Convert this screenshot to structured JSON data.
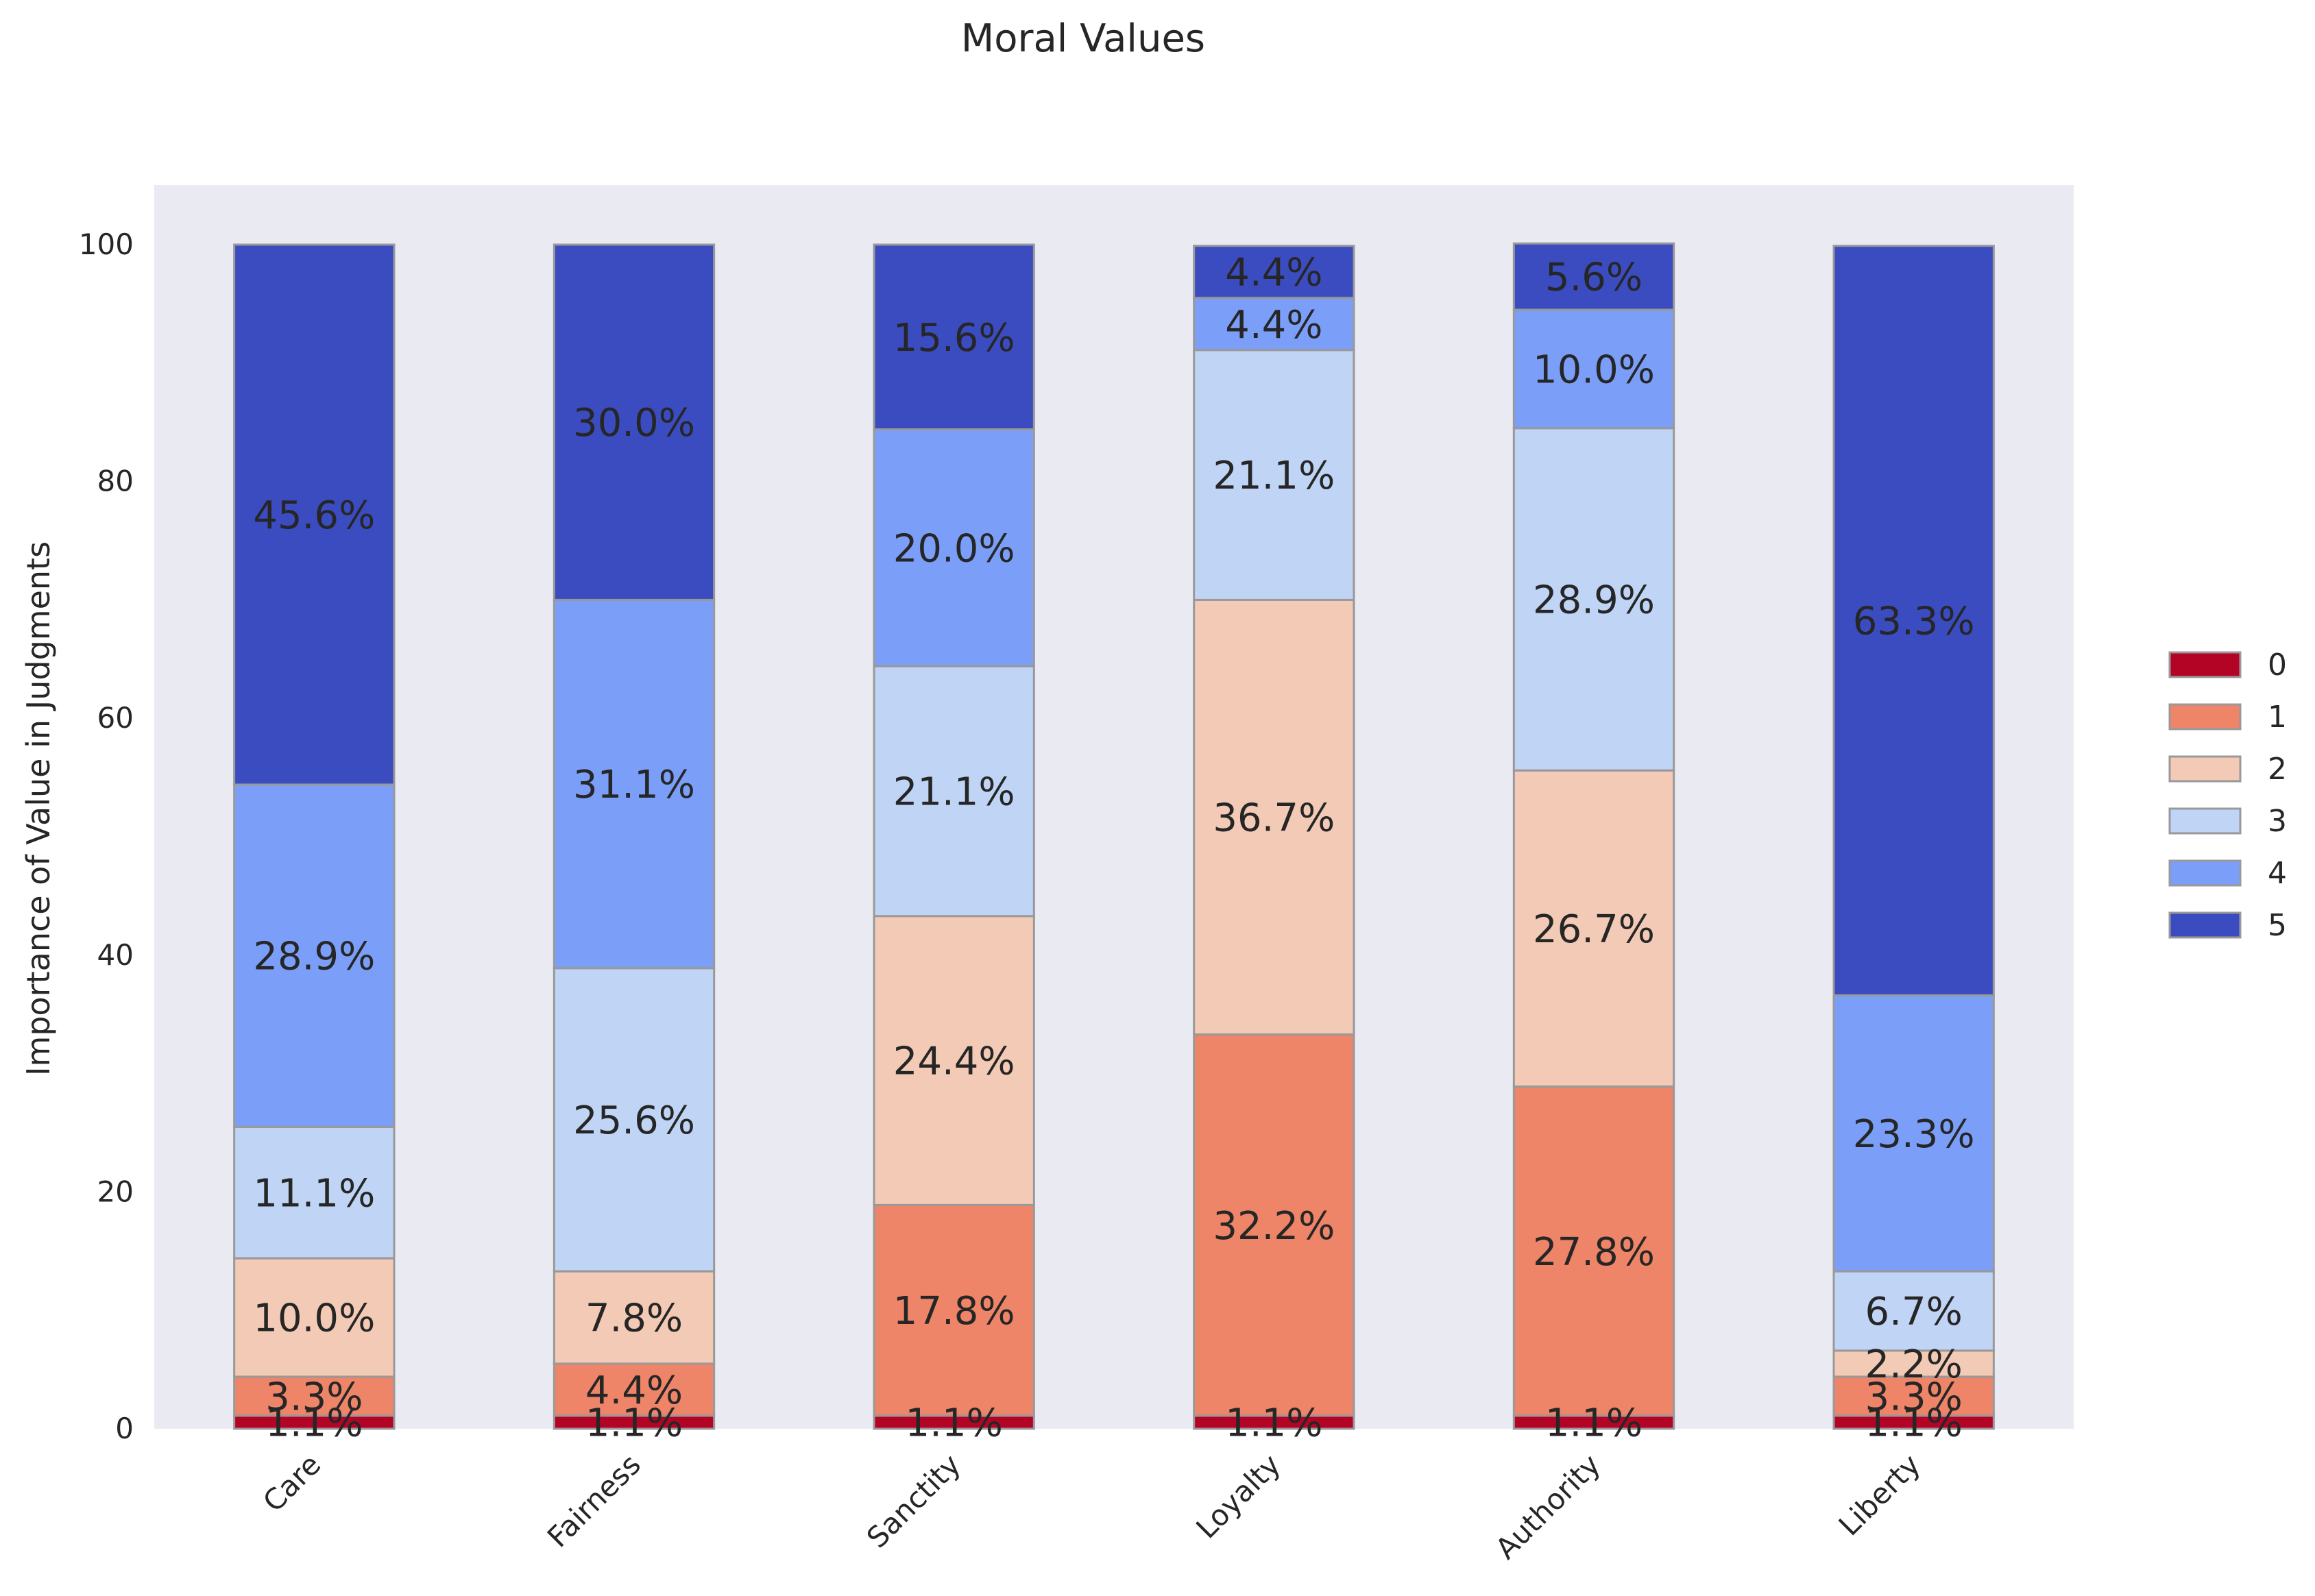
{
  "chart_data": {
    "type": "bar",
    "stacked": true,
    "title": "Moral Values",
    "xlabel": "",
    "ylabel": "Importance of Value in Judgments",
    "ylim": [
      0,
      105
    ],
    "yticks": [
      0,
      20,
      40,
      60,
      80,
      100
    ],
    "grid": false,
    "legend_position": "right",
    "categories": [
      "Care",
      "Fairness",
      "Sanctity",
      "Loyalty",
      "Authority",
      "Liberty"
    ],
    "series": [
      {
        "name": "0",
        "color": "#b40426",
        "values": [
          1.1,
          1.1,
          1.1,
          1.1,
          1.1,
          1.1
        ],
        "labels": [
          "1.1%",
          "1.1%",
          "1.1%",
          "1.1%",
          "1.1%",
          "1.1%"
        ]
      },
      {
        "name": "1",
        "color": "#ee8468",
        "values": [
          3.3,
          4.4,
          17.8,
          32.2,
          27.8,
          3.3
        ],
        "labels": [
          "3.3%",
          "4.4%",
          "17.8%",
          "32.2%",
          "27.8%",
          "3.3%"
        ]
      },
      {
        "name": "2",
        "color": "#f2cab5",
        "values": [
          10.0,
          7.8,
          24.4,
          36.7,
          26.7,
          2.2
        ],
        "labels": [
          "10.0%",
          "7.8%",
          "24.4%",
          "36.7%",
          "26.7%",
          "2.2%"
        ]
      },
      {
        "name": "3",
        "color": "#c0d4f5",
        "values": [
          11.1,
          25.6,
          21.1,
          21.1,
          28.9,
          6.7
        ],
        "labels": [
          "11.1%",
          "25.6%",
          "21.1%",
          "21.1%",
          "28.9%",
          "6.7%"
        ]
      },
      {
        "name": "4",
        "color": "#7b9ff9",
        "values": [
          28.9,
          31.1,
          20.0,
          4.4,
          10.0,
          23.3
        ],
        "labels": [
          "28.9%",
          "31.1%",
          "20.0%",
          "4.4%",
          "10.0%",
          "23.3%"
        ]
      },
      {
        "name": "5",
        "color": "#3b4cc0",
        "values": [
          45.6,
          30.0,
          15.6,
          4.4,
          5.6,
          63.3
        ],
        "labels": [
          "45.6%",
          "30.0%",
          "15.6%",
          "4.4%",
          "5.6%",
          "63.3%"
        ]
      }
    ],
    "colors": {
      "plot_background": "#eaeaf2",
      "bar_edge": "#999999",
      "text": "#262626"
    }
  }
}
